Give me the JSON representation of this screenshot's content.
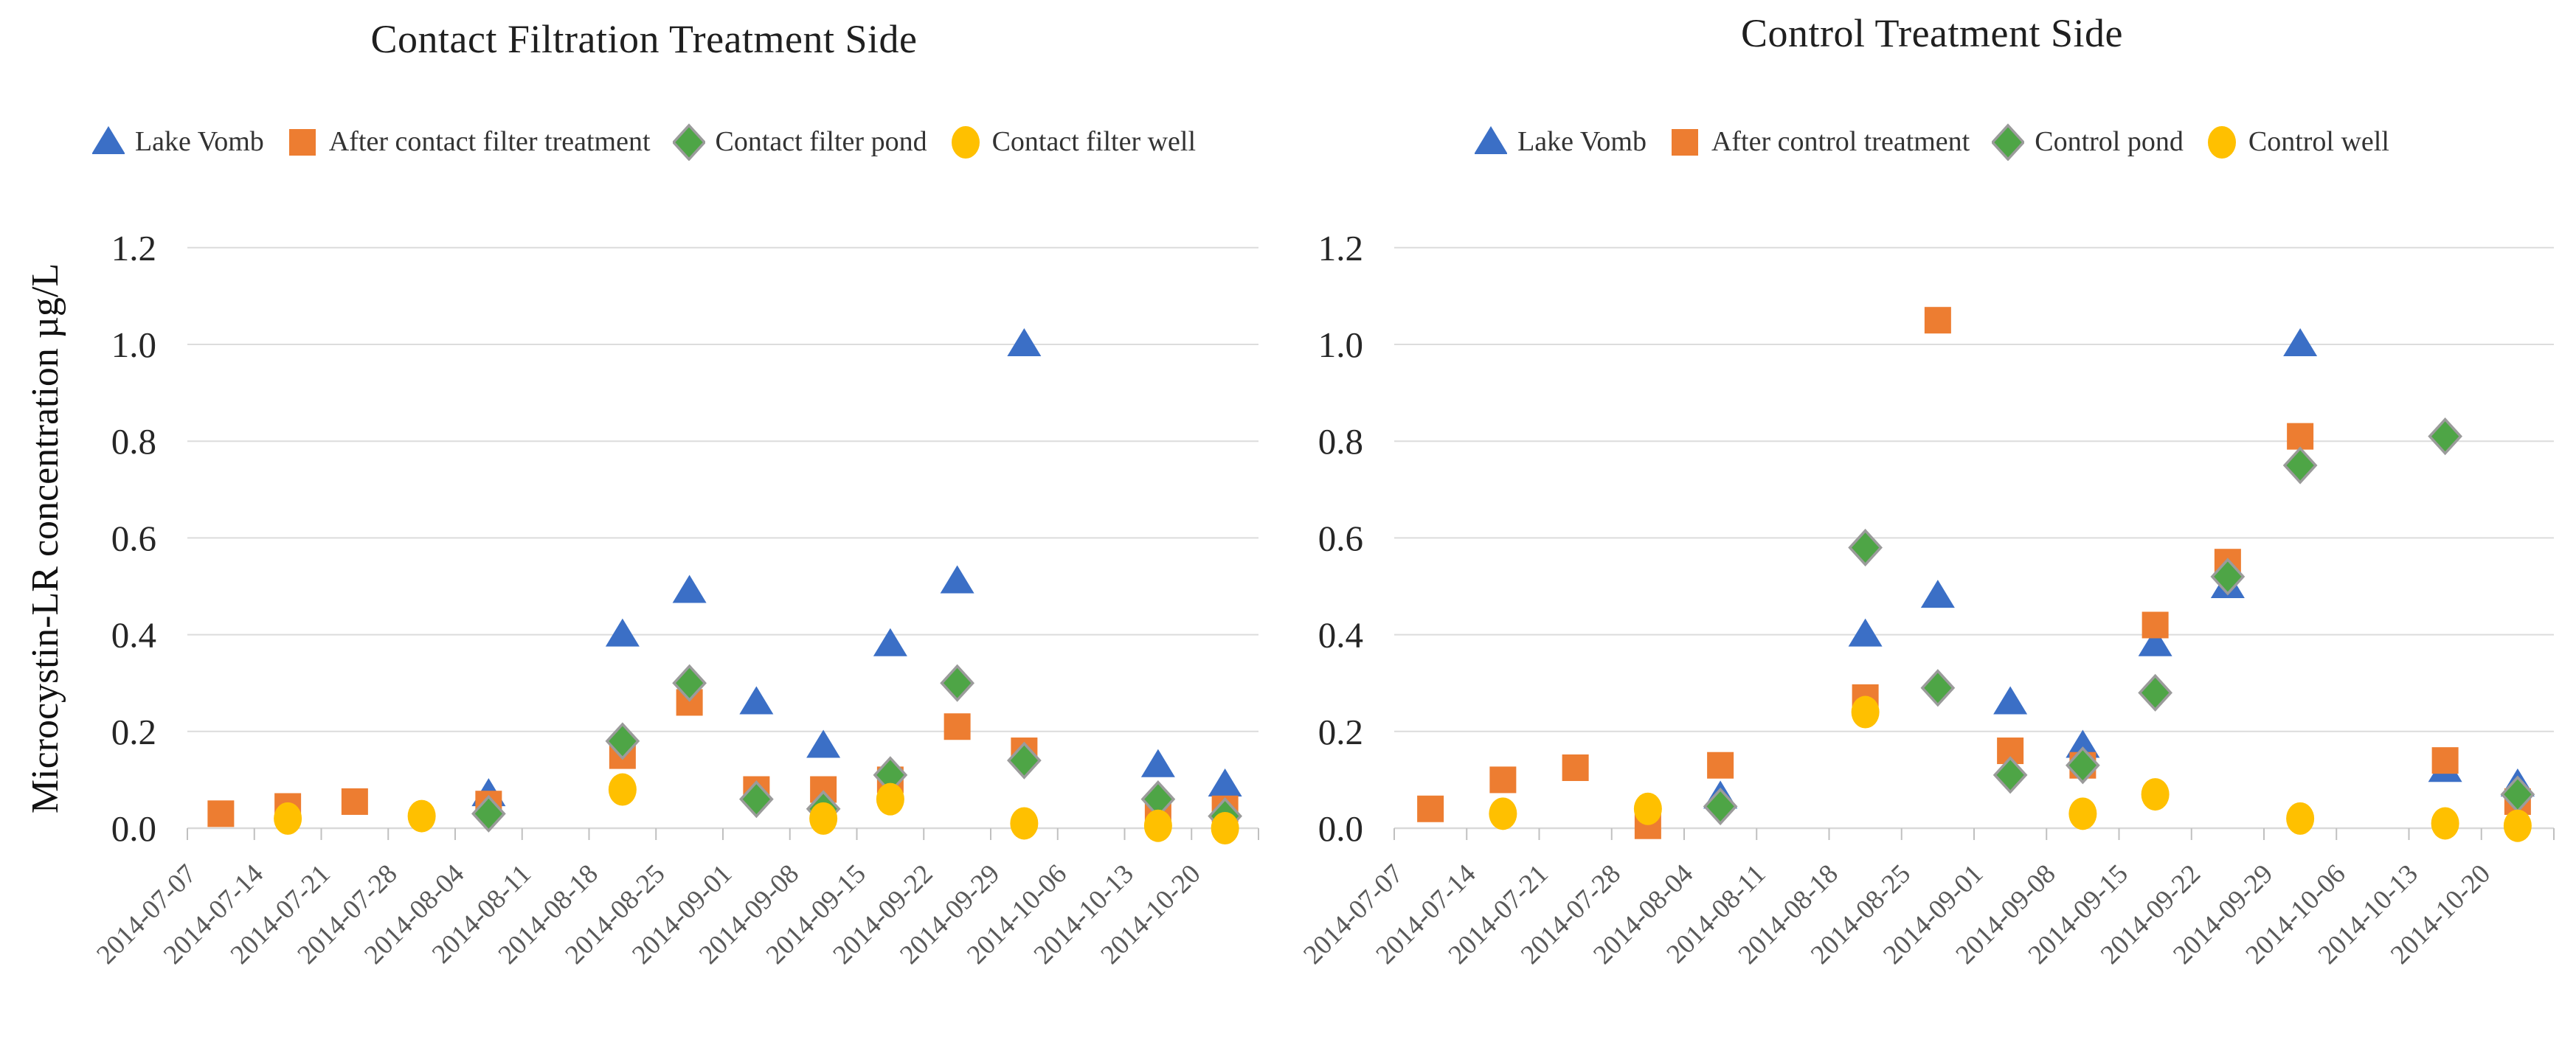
{
  "page": {
    "background": "#ffffff"
  },
  "y_axis": {
    "tick_labels_top_to_bottom": [
      "1.2",
      "1.0",
      "0.8",
      "0.6",
      "0.4",
      "0.2",
      "0.0"
    ],
    "min": 0.0,
    "max": 1.2,
    "step": 0.2
  },
  "colors": {
    "lake_vomb_blue": "#3B6FC6",
    "treatment_orange": "#ED7D31",
    "pond_green": "#4EA546",
    "pond_stroke_gray": "#9B9B9B",
    "well_yellow": "#FFC000",
    "gridline": "#DCDCDC",
    "axis_line": "#D9D9D9",
    "tick_mark": "#C0C0C0",
    "date_label": "#595959",
    "ytick_label": "#262626"
  },
  "chart_data": [
    {
      "type": "scatter",
      "title": "Contact Filtration Treatment Side",
      "ylabel": "Microcystin-LR concentration µg/L",
      "xlabel": "",
      "ylim": [
        0,
        1.3
      ],
      "grid": "horizontal",
      "legend_position": "top",
      "categories": [
        "2014-07-07",
        "2014-07-14",
        "2014-07-21",
        "2014-07-28",
        "2014-08-04",
        "2014-08-11",
        "2014-08-18",
        "2014-08-25",
        "2014-09-01",
        "2014-09-08",
        "2014-09-15",
        "2014-09-22",
        "2014-09-29",
        "2014-10-06",
        "2014-10-13",
        "2014-10-20"
      ],
      "series": [
        {
          "name": "Lake Vomb",
          "marker": "triangle",
          "color": "#3B6FC6",
          "values": [
            null,
            null,
            null,
            null,
            0.07,
            null,
            0.4,
            0.49,
            0.26,
            0.17,
            0.38,
            0.51,
            1.0,
            null,
            0.13,
            0.09
          ]
        },
        {
          "name": "After contact filter treatment",
          "marker": "square",
          "color": "#ED7D31",
          "values": [
            0.03,
            0.045,
            0.055,
            null,
            0.05,
            null,
            0.15,
            0.26,
            0.08,
            0.08,
            0.1,
            0.21,
            0.16,
            null,
            0.04,
            0.04
          ]
        },
        {
          "name": "Contact filter pond",
          "marker": "diamond",
          "color": "#4EA546",
          "values": [
            null,
            null,
            null,
            null,
            0.03,
            null,
            0.18,
            0.3,
            0.06,
            0.04,
            0.11,
            0.3,
            0.14,
            null,
            0.06,
            0.025
          ]
        },
        {
          "name": "Contact filter well",
          "marker": "circle",
          "color": "#FFC000",
          "values": [
            null,
            0.02,
            null,
            0.025,
            null,
            null,
            0.08,
            null,
            null,
            0.02,
            0.06,
            null,
            0.01,
            null,
            0.005,
            0.0
          ]
        }
      ]
    },
    {
      "type": "scatter",
      "title": "Control Treatment Side",
      "ylabel": "",
      "xlabel": "",
      "ylim": [
        0,
        1.3
      ],
      "grid": "horizontal",
      "legend_position": "top",
      "categories": [
        "2014-07-07",
        "2014-07-14",
        "2014-07-21",
        "2014-07-28",
        "2014-08-04",
        "2014-08-11",
        "2014-08-18",
        "2014-08-25",
        "2014-09-01",
        "2014-09-08",
        "2014-09-15",
        "2014-09-22",
        "2014-09-29",
        "2014-10-06",
        "2014-10-13",
        "2014-10-20"
      ],
      "series": [
        {
          "name": "Lake Vomb",
          "marker": "triangle",
          "color": "#3B6FC6",
          "values": [
            null,
            null,
            null,
            null,
            0.065,
            null,
            0.4,
            0.48,
            0.26,
            0.17,
            0.38,
            0.5,
            1.0,
            null,
            0.12,
            0.09
          ]
        },
        {
          "name": "After control treatment",
          "marker": "square",
          "color": "#ED7D31",
          "values": [
            0.04,
            0.1,
            0.125,
            0.005,
            0.13,
            null,
            0.27,
            1.05,
            0.16,
            0.13,
            0.42,
            0.55,
            0.81,
            null,
            0.14,
            0.055
          ]
        },
        {
          "name": "Control pond",
          "marker": "diamond",
          "color": "#4EA546",
          "values": [
            null,
            null,
            null,
            null,
            0.045,
            null,
            0.58,
            0.29,
            0.11,
            0.13,
            0.28,
            0.52,
            0.75,
            null,
            0.81,
            0.07
          ]
        },
        {
          "name": "Control well",
          "marker": "circle",
          "color": "#FFC000",
          "values": [
            null,
            0.03,
            null,
            0.04,
            null,
            null,
            0.24,
            null,
            null,
            0.03,
            0.07,
            null,
            0.02,
            null,
            0.01,
            0.005
          ]
        }
      ]
    }
  ]
}
